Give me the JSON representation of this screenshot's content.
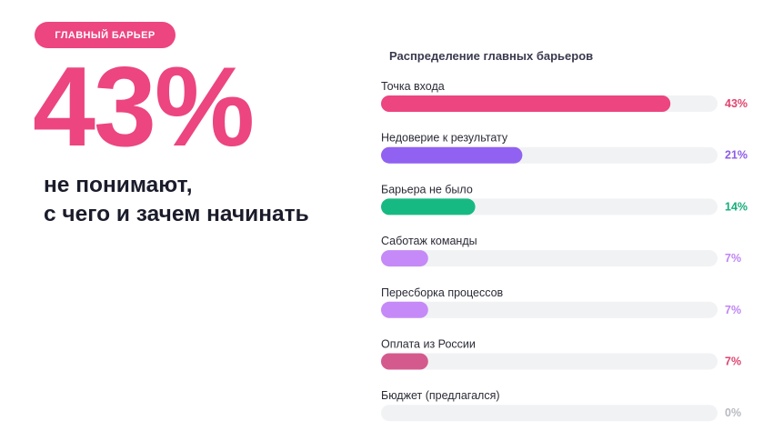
{
  "badge": {
    "label": "ГЛАВНЫЙ БАРЬЕР"
  },
  "headline": {
    "value": "43%",
    "line1": "не понимают,",
    "line2": "с чего и зачем начинать"
  },
  "colors": {
    "accent": "#ec4580",
    "title_text": "#3a3a4f",
    "track": "#f1f2f4"
  },
  "chart_data": {
    "type": "bar",
    "orientation": "horizontal",
    "title": "Распределение главных барьеров",
    "categories": [
      "Точка входа",
      "Недоверие к результату",
      "Барьера не было",
      "Саботаж команды",
      "Пересборка процессов",
      "Оплата из России",
      "Бюджет (предлагался)"
    ],
    "values": [
      43,
      21,
      14,
      7,
      7,
      7,
      0
    ],
    "labels": [
      "43%",
      "21%",
      "14%",
      "7%",
      "7%",
      "7%",
      "0%"
    ],
    "xlim": [
      0,
      50
    ],
    "bar_colors": [
      "#ec4580",
      "#9161f1",
      "#17b983",
      "#c58af7",
      "#c58af7",
      "#d45a8e",
      "#c9cbd2"
    ],
    "label_colors": [
      "#e2436f",
      "#8c5ce8",
      "#16ad7a",
      "#c084f5",
      "#c084f5",
      "#dc4470",
      "#b8bac1"
    ]
  }
}
